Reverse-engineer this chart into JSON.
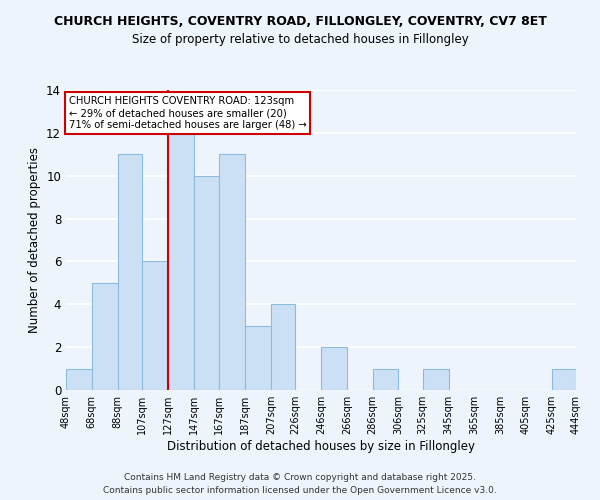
{
  "title_line1": "CHURCH HEIGHTS, COVENTRY ROAD, FILLONGLEY, COVENTRY, CV7 8ET",
  "title_line2": "Size of property relative to detached houses in Fillongley",
  "xlabel": "Distribution of detached houses by size in Fillongley",
  "ylabel": "Number of detached properties",
  "footer_line1": "Contains HM Land Registry data © Crown copyright and database right 2025.",
  "footer_line2": "Contains public sector information licensed under the Open Government Licence v3.0.",
  "bar_edges": [
    48,
    68,
    88,
    107,
    127,
    147,
    167,
    187,
    207,
    226,
    246,
    266,
    286,
    306,
    325,
    345,
    365,
    385,
    405,
    425,
    444
  ],
  "bar_heights": [
    1,
    5,
    11,
    6,
    12,
    10,
    11,
    3,
    4,
    0,
    2,
    0,
    1,
    0,
    1,
    0,
    0,
    0,
    0,
    1
  ],
  "tick_labels": [
    "48sqm",
    "68sqm",
    "88sqm",
    "107sqm",
    "127sqm",
    "147sqm",
    "167sqm",
    "187sqm",
    "207sqm",
    "226sqm",
    "246sqm",
    "266sqm",
    "286sqm",
    "306sqm",
    "325sqm",
    "345sqm",
    "365sqm",
    "385sqm",
    "405sqm",
    "425sqm",
    "444sqm"
  ],
  "bar_color": "#cce0f5",
  "bar_edge_color": "#8bbce0",
  "vline_x": 127,
  "vline_color": "#cc0000",
  "ylim": [
    0,
    14
  ],
  "yticks": [
    0,
    2,
    4,
    6,
    8,
    10,
    12,
    14
  ],
  "annotation_title": "CHURCH HEIGHTS COVENTRY ROAD: 123sqm",
  "annotation_line2": "← 29% of detached houses are smaller (20)",
  "annotation_line3": "71% of semi-detached houses are larger (48) →",
  "bg_color": "#eef4fc",
  "title_fontsize": 9.0,
  "subtitle_fontsize": 8.5,
  "xlabel_fontsize": 8.5,
  "ylabel_fontsize": 8.5,
  "tick_fontsize": 7.0,
  "footer_fontsize": 6.5
}
